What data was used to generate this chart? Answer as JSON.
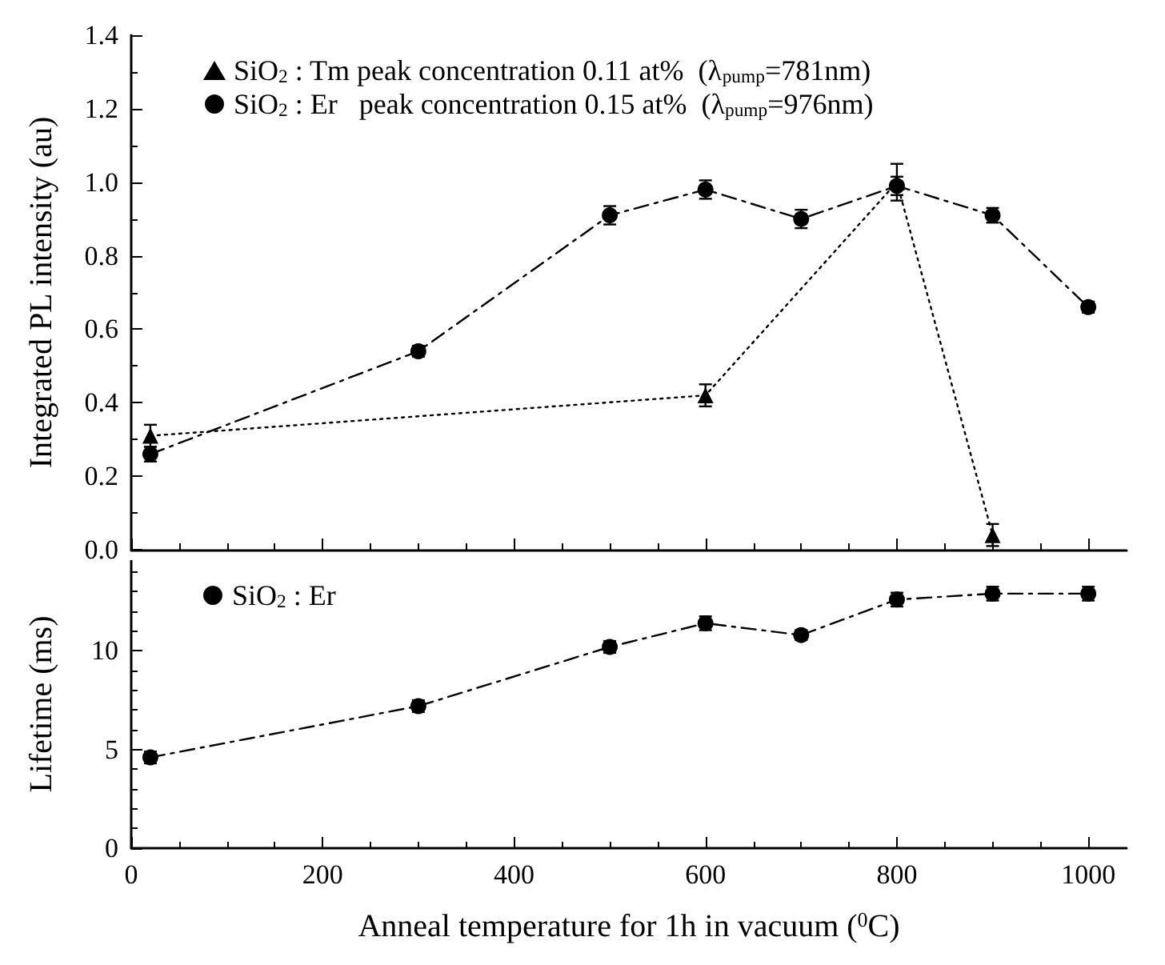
{
  "chart_data": [
    {
      "type": "line",
      "ylabel": "Integrated PL intensity (au)",
      "xlim": [
        0,
        1040
      ],
      "xticks": [
        0,
        200,
        400,
        600,
        800,
        1000
      ],
      "ylim": [
        0,
        1.4
      ],
      "yticks": [
        {
          "value": 0,
          "label": "0.0"
        },
        {
          "value": 0.2,
          "label": "0.2"
        },
        {
          "value": 0.4,
          "label": "0.4"
        },
        {
          "value": 0.6,
          "label": "0.6"
        },
        {
          "value": 0.8,
          "label": "0.8"
        },
        {
          "value": 1,
          "label": "1.0"
        },
        {
          "value": 1.2,
          "label": "1.2"
        },
        {
          "value": 1.4,
          "label": "1.4"
        }
      ],
      "tick_labels": "y",
      "grid": false,
      "legend": "top left",
      "series": [
        {
          "name": "SiO$_{2}$ : Tm peak concentration 0.11 at%  (λ$_{pump}$=781nm)",
          "color": "#000000",
          "marker": "triangle",
          "line_style": "dotted",
          "x": [
            20,
            600,
            800,
            900
          ],
          "values": [
            0.31,
            0.42,
            1.0,
            0.04
          ],
          "errors": [
            0.03,
            0.03,
            0.05,
            0.03
          ]
        },
        {
          "name": "SiO$_{2}$ : Er   peak concentration 0.15 at%  (λ$_{pump}$=976nm)",
          "color": "#000000",
          "marker": "circle",
          "line_style": "dashed",
          "x": [
            20,
            300,
            500,
            600,
            700,
            800,
            900,
            1000
          ],
          "values": [
            0.26,
            0.54,
            0.91,
            0.98,
            0.9,
            0.99,
            0.91,
            0.66
          ],
          "errors": [
            0.02,
            0.015,
            0.025,
            0.025,
            0.025,
            0.025,
            0.02,
            0.015
          ]
        }
      ]
    },
    {
      "type": "line",
      "xlabel": "Anneal temperature for 1h in vacuum ($^{0}$C)",
      "ylabel": "Lifetime (ms)",
      "xlim": [
        0,
        1040
      ],
      "xticks": [
        0,
        200,
        400,
        600,
        800,
        1000
      ],
      "ylim": [
        0,
        14.6
      ],
      "yticks": [
        0,
        5,
        10
      ],
      "grid": false,
      "legend": "top left",
      "series": [
        {
          "name": "SiO$_{2}$ : Er",
          "color": "#000000",
          "marker": "circle",
          "line_style": "dashed",
          "x": [
            20,
            300,
            500,
            600,
            700,
            800,
            900,
            1000
          ],
          "values": [
            4.6,
            7.2,
            10.2,
            11.4,
            10.8,
            12.6,
            12.9,
            12.9
          ],
          "errors": [
            0.3,
            0.3,
            0.3,
            0.35,
            0.25,
            0.35,
            0.35,
            0.35
          ]
        }
      ]
    }
  ]
}
